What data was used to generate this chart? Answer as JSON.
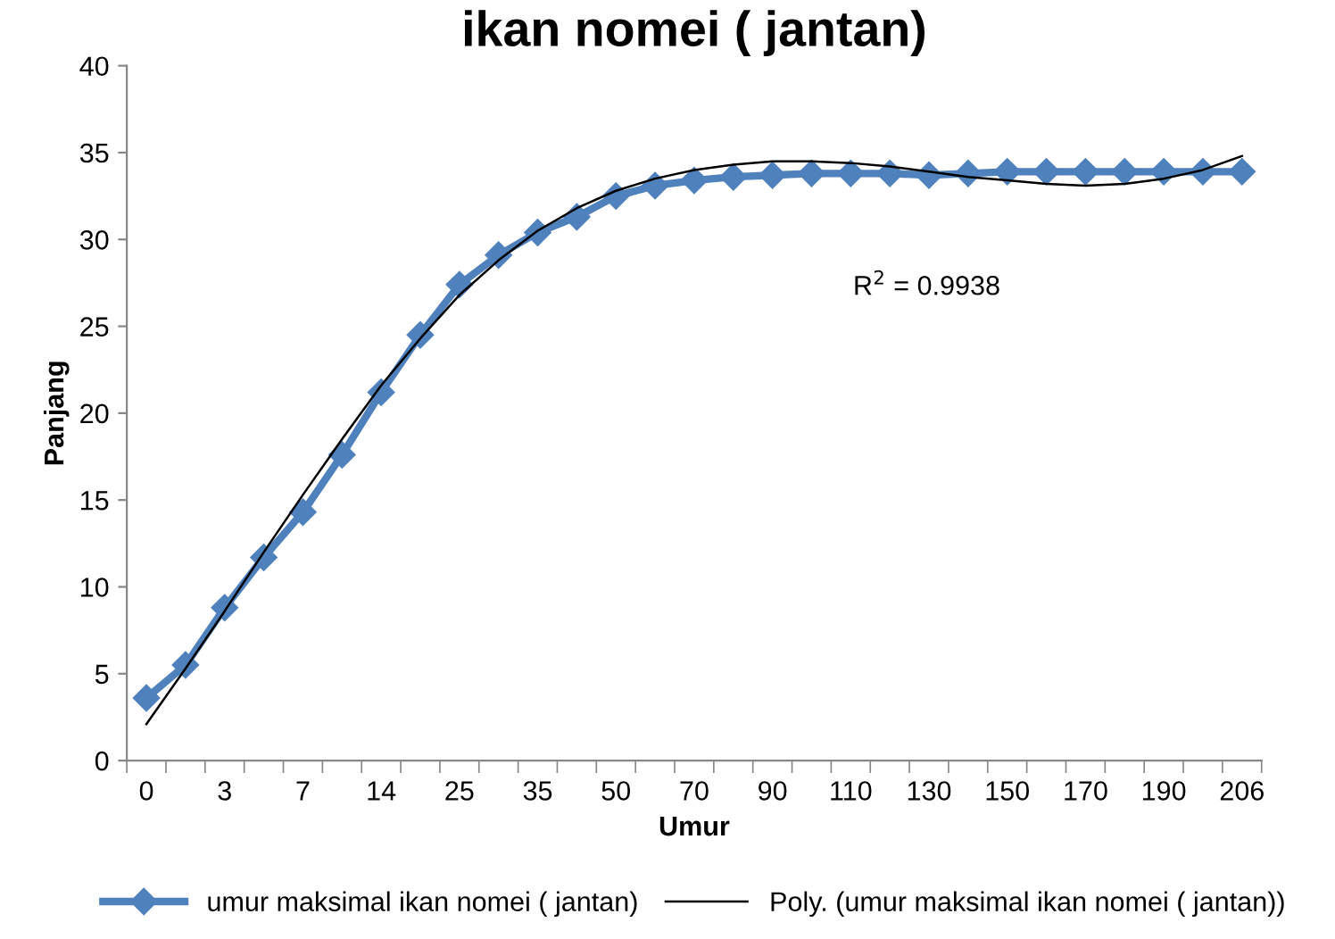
{
  "chart_data": {
    "type": "line",
    "title": "ikan nomei ( jantan)",
    "xlabel": "Umur",
    "ylabel": "Panjang",
    "categories": [
      "0",
      null,
      "3",
      null,
      "7",
      null,
      "14",
      null,
      "25",
      null,
      "35",
      null,
      "50",
      null,
      "70",
      null,
      "90",
      null,
      "110",
      null,
      "130",
      null,
      "150",
      null,
      "170",
      null,
      "190",
      null,
      "206"
    ],
    "series": [
      {
        "name": "umur maksimal ikan nomei ( jantan)",
        "color": "#4f81bd",
        "marker": "diamond",
        "values": [
          3.6,
          5.5,
          8.8,
          11.7,
          14.3,
          17.6,
          21.2,
          24.5,
          27.4,
          29.1,
          30.4,
          31.3,
          32.5,
          33.1,
          33.4,
          33.6,
          33.7,
          33.8,
          33.8,
          33.8,
          33.7,
          33.8,
          33.9,
          33.9,
          33.9,
          33.9,
          33.9,
          33.9,
          33.9
        ]
      },
      {
        "name": "Poly. (umur maksimal ikan nomei ( jantan))",
        "color": "#000000",
        "marker": "none",
        "values": [
          2.1,
          5.3,
          8.6,
          12.0,
          15.3,
          18.5,
          21.6,
          24.3,
          26.8,
          28.8,
          30.5,
          31.8,
          32.8,
          33.5,
          34.0,
          34.3,
          34.5,
          34.5,
          34.4,
          34.2,
          33.9,
          33.6,
          33.4,
          33.2,
          33.1,
          33.2,
          33.5,
          34.0,
          34.8
        ]
      }
    ],
    "ylim": [
      0,
      40
    ],
    "yticks": [
      0,
      5,
      10,
      15,
      20,
      25,
      30,
      35,
      40
    ],
    "annotations": [
      "R$^{2}$ = 0.9938"
    ],
    "grid": false,
    "legend": "bottom"
  }
}
